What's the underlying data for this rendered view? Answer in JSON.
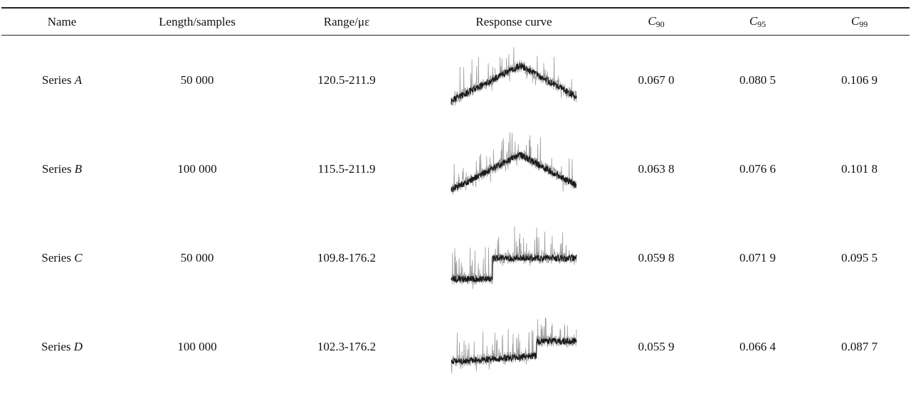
{
  "table": {
    "headers": {
      "name": "Name",
      "length": "Length/samples",
      "range": "Range/με",
      "curve": "Response curve",
      "c90": {
        "symbol": "C",
        "sub": "90"
      },
      "c95": {
        "symbol": "C",
        "sub": "95"
      },
      "c99": {
        "symbol": "C",
        "sub": "99"
      }
    },
    "rows": [
      {
        "prefix": "Series",
        "letter": "A",
        "length": "50 000",
        "range": "120.5-211.9",
        "c90": "0.067 0",
        "c95": "0.080 5",
        "c99": "0.106 9",
        "curve_shape": "peak-center"
      },
      {
        "prefix": "Series",
        "letter": "B",
        "length": "100 000",
        "range": "115.5-211.9",
        "c90": "0.063 8",
        "c95": "0.076 6",
        "c99": "0.101 8",
        "curve_shape": "peak-center"
      },
      {
        "prefix": "Series",
        "letter": "C",
        "length": "50 000",
        "range": "109.8-176.2",
        "c90": "0.059 8",
        "c95": "0.071 9",
        "c99": "0.095 5",
        "curve_shape": "step-up-early"
      },
      {
        "prefix": "Series",
        "letter": "D",
        "length": "100 000",
        "range": "102.3-176.2",
        "c90": "0.055 9",
        "c95": "0.066 4",
        "c99": "0.087 7",
        "curve_shape": "step-up-late"
      }
    ]
  }
}
